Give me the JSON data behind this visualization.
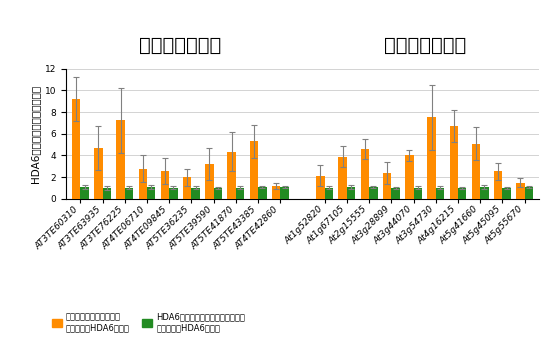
{
  "title_left": "トランスポゾン",
  "title_right": "機能未知遵伝子",
  "ylabel": "HDA6タンパク質の結合増加率",
  "categories_transposon": [
    "AT3TE60310",
    "AT3TE63935",
    "AT3TE76225",
    "AT4TE06710",
    "AT4TE09845",
    "AT5TE36235",
    "AT5TE39590",
    "AT5TE41870",
    "AT5TE43385",
    "AT4TE42860"
  ],
  "categories_gene": [
    "At1g52820",
    "At1g67105",
    "At2g15555",
    "At3g28899",
    "At3g44070",
    "At3g54730",
    "At4g16215",
    "At5g41660",
    "At5g45095",
    "At5g55670"
  ],
  "orange_transposon": [
    9.2,
    4.7,
    7.25,
    2.8,
    2.55,
    2.0,
    3.2,
    4.35,
    5.3,
    1.2
  ],
  "green_transposon": [
    1.1,
    1.0,
    1.05,
    1.1,
    1.05,
    1.05,
    1.0,
    1.05,
    1.1,
    1.1
  ],
  "orange_gene": [
    2.15,
    3.9,
    4.6,
    2.4,
    4.0,
    7.5,
    6.7,
    5.1,
    2.55,
    1.5
  ],
  "green_gene": [
    1.05,
    1.1,
    1.1,
    1.0,
    1.05,
    1.05,
    1.0,
    1.1,
    1.0,
    1.1
  ],
  "orange_err_transposon": [
    2.0,
    2.0,
    3.0,
    1.2,
    1.2,
    0.8,
    1.5,
    1.8,
    1.5,
    0.3
  ],
  "green_err_transposon": [
    0.15,
    0.15,
    0.1,
    0.15,
    0.1,
    0.1,
    0.1,
    0.1,
    0.1,
    0.1
  ],
  "orange_err_gene": [
    1.0,
    1.0,
    0.9,
    1.0,
    0.5,
    3.0,
    1.5,
    1.5,
    0.8,
    0.4
  ],
  "green_err_gene": [
    0.1,
    0.15,
    0.1,
    0.1,
    0.1,
    0.1,
    0.1,
    0.2,
    0.1,
    0.1
  ],
  "orange_color": "#FF8C00",
  "green_color": "#228B22",
  "bar_width": 0.38,
  "ylim": [
    0,
    12
  ],
  "yticks": [
    0,
    2,
    4,
    6,
    8,
    10,
    12
  ],
  "legend_orange": "野生型シロイヌナズナで\n検出されたHDA6の結合",
  "legend_green": "HDA6違伝子破壊シロイヌナズナで\n検出されたHDA6の結合",
  "title_fontsize": 14,
  "label_fontsize": 7.5,
  "tick_fontsize": 6.5,
  "legend_fontsize": 6.0
}
